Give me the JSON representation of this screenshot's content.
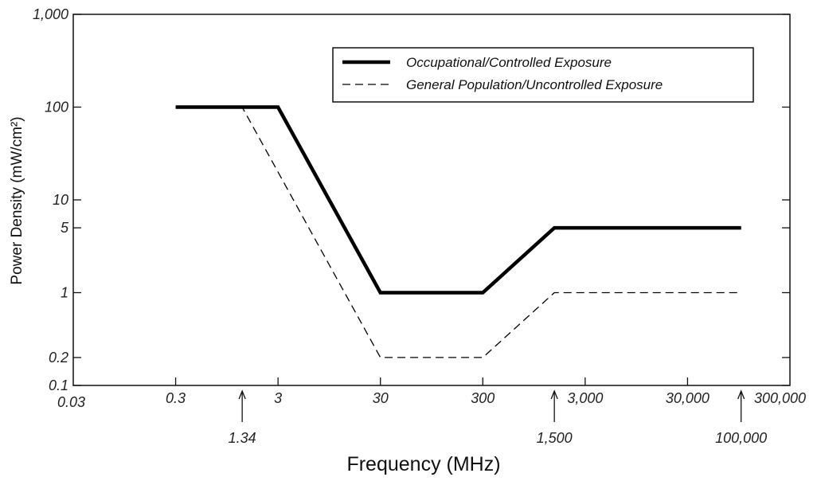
{
  "chart_data": {
    "type": "line",
    "xlabel": "Frequency (MHz)",
    "ylabel": "Power Density (mW/cm²)",
    "x_scale": "log",
    "y_scale": "log",
    "xlim": [
      0.03,
      300000
    ],
    "ylim": [
      0.1,
      1000
    ],
    "x_tick_labels": [
      {
        "value": 0.03,
        "label": "0.03"
      },
      {
        "value": 0.3,
        "label": "0.3"
      },
      {
        "value": 3,
        "label": "3"
      },
      {
        "value": 30,
        "label": "30"
      },
      {
        "value": 300,
        "label": "300"
      },
      {
        "value": 3000,
        "label": "3,000"
      },
      {
        "value": 30000,
        "label": "30,000"
      },
      {
        "value": 300000,
        "label": "300,000"
      }
    ],
    "y_tick_labels": [
      {
        "value": 1000,
        "label": "1,000"
      },
      {
        "value": 100,
        "label": "100"
      },
      {
        "value": 10,
        "label": "10"
      },
      {
        "value": 5,
        "label": "5"
      },
      {
        "value": 1,
        "label": "1"
      },
      {
        "value": 0.2,
        "label": "0.2"
      },
      {
        "value": 0.1,
        "label": "0.1"
      }
    ],
    "annotations": [
      {
        "x": 1.34,
        "label": "1.34"
      },
      {
        "x": 1500,
        "label": "1,500"
      },
      {
        "x": 100000,
        "label": "100,000"
      }
    ],
    "legend_position": "top-right",
    "grid": false,
    "series": [
      {
        "name": "Occupational/Controlled Exposure",
        "style": "solid",
        "color": "#000000",
        "points": [
          [
            0.3,
            100
          ],
          [
            3,
            100
          ],
          [
            30,
            1
          ],
          [
            300,
            1
          ],
          [
            1500,
            5
          ],
          [
            100000,
            5
          ]
        ]
      },
      {
        "name": "General Population/Uncontrolled Exposure",
        "style": "dashed",
        "color": "#000000",
        "points": [
          [
            0.3,
            100
          ],
          [
            1.34,
            100
          ],
          [
            30,
            0.2
          ],
          [
            300,
            0.2
          ],
          [
            1500,
            1
          ],
          [
            100000,
            1
          ]
        ]
      }
    ]
  }
}
